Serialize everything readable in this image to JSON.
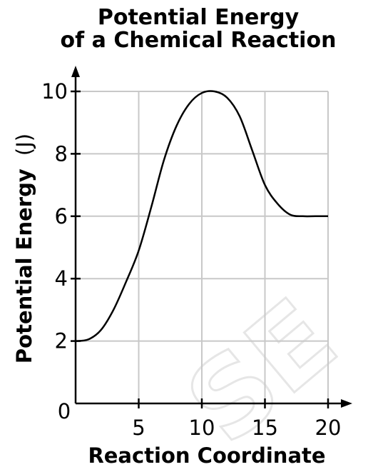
{
  "watermark": "SE",
  "chart_data": {
    "type": "line",
    "title_lines": [
      "Potential Energy",
      "of a Chemical Reaction"
    ],
    "xlabel": "Reaction Coordinate",
    "ylabel_main": "Potential Energy",
    "ylabel_unit": "(J)",
    "xlim": [
      0,
      20
    ],
    "ylim": [
      0,
      10
    ],
    "x_ticks": [
      "0",
      "5",
      "10",
      "15",
      "20"
    ],
    "y_ticks": [
      "2",
      "4",
      "6",
      "8",
      "10"
    ],
    "grid": true,
    "series": [
      {
        "x": [
          0,
          1,
          2,
          3,
          4,
          5,
          6,
          7,
          8,
          9,
          10,
          11,
          12,
          13,
          14,
          15,
          16,
          17,
          18,
          19,
          20
        ],
        "y": [
          2.0,
          2.05,
          2.35,
          3.0,
          3.9,
          4.9,
          6.3,
          7.8,
          8.9,
          9.6,
          9.95,
          10.0,
          9.8,
          9.2,
          8.1,
          7.0,
          6.4,
          6.05,
          6.0,
          6.0,
          6.0
        ]
      }
    ]
  }
}
